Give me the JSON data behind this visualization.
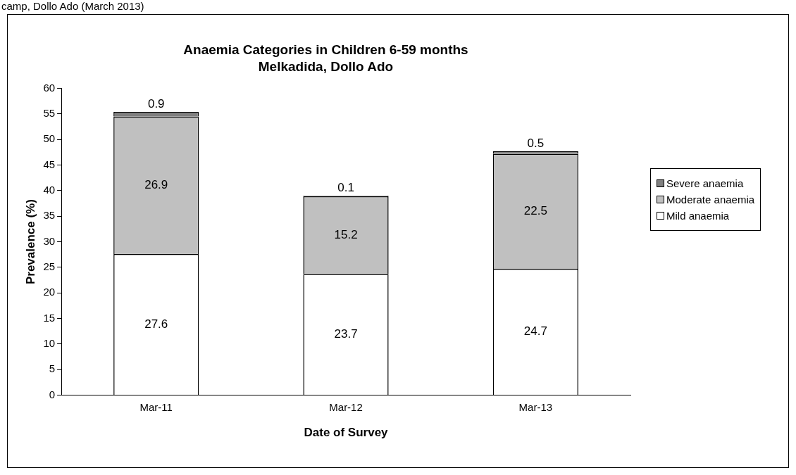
{
  "chart_data": {
    "type": "bar",
    "title": "Anaemia Categories in Children 6-59 months",
    "subtitle": "Melkadida, Dollo Ado",
    "xlabel": "Date of Survey",
    "ylabel": "Prevalence (%)",
    "annotations": [
      "camp, Dollo Ado (March 2013)"
    ],
    "categories": [
      "Mar-11",
      "Mar-12",
      "Mar-13"
    ],
    "series": [
      {
        "name": "Mild anaemia",
        "color": "#ffffff",
        "values": [
          27.6,
          23.7,
          24.7
        ]
      },
      {
        "name": "Moderate anaemia",
        "color": "#c0c0c0",
        "values": [
          26.9,
          15.2,
          22.5
        ]
      },
      {
        "name": "Severe anaemia",
        "color": "#808080",
        "values": [
          0.9,
          0.1,
          0.5
        ]
      }
    ],
    "stacked": true,
    "ylim": [
      0,
      60
    ],
    "yticks": [
      0,
      5,
      10,
      15,
      20,
      25,
      30,
      35,
      40,
      45,
      50,
      55,
      60
    ],
    "grid": false,
    "legend": "right",
    "data_labels": true
  }
}
